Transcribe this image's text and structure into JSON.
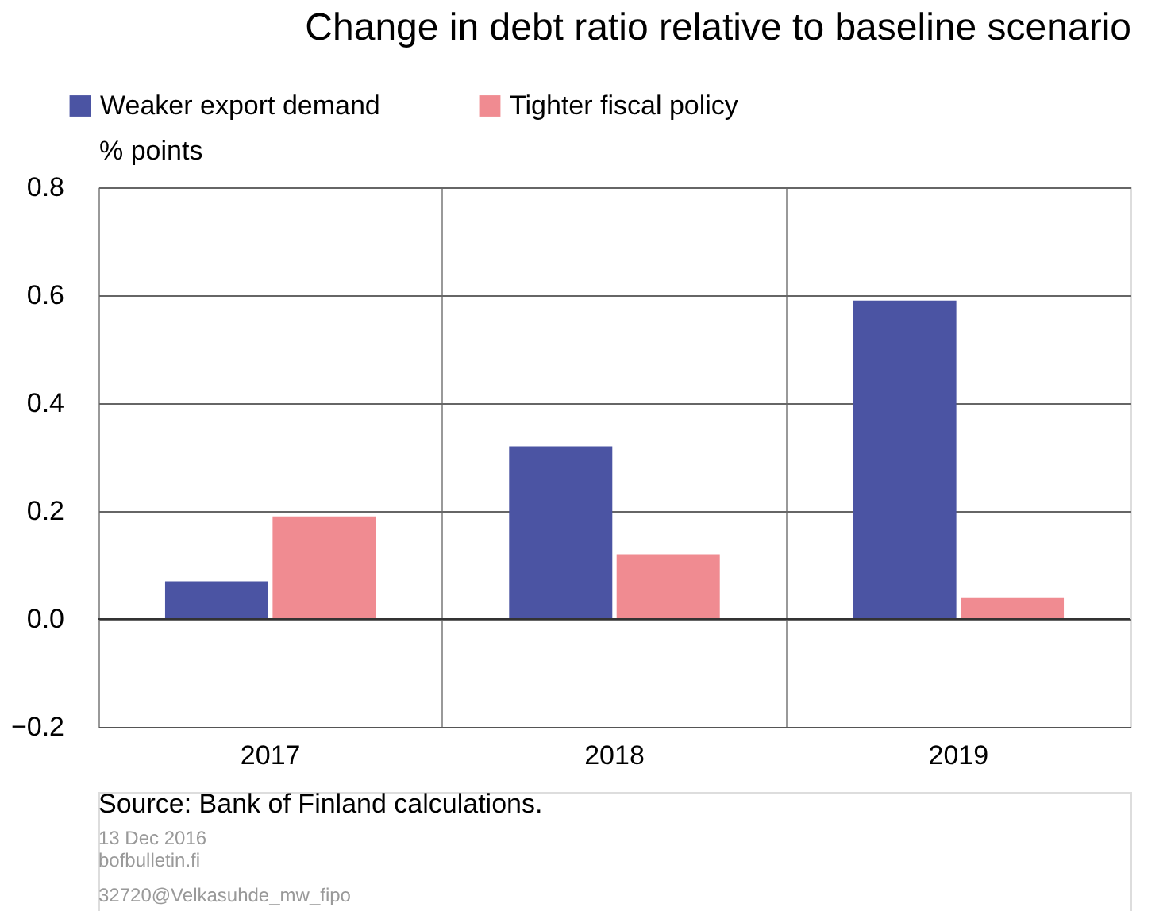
{
  "chart_data": {
    "type": "bar",
    "title": "Change in debt ratio relative to baseline scenario",
    "ylabel": "% points",
    "categories": [
      "2017",
      "2018",
      "2019"
    ],
    "series": [
      {
        "name": "Weaker export demand",
        "color": "#4b54a3",
        "values": [
          0.07,
          0.32,
          0.59
        ]
      },
      {
        "name": "Tighter fiscal policy",
        "color": "#f08b91",
        "values": [
          0.19,
          0.12,
          0.04
        ]
      }
    ],
    "ylim": [
      -0.2,
      0.8
    ],
    "yticks": [
      {
        "value": -0.2,
        "label": "−0.2"
      },
      {
        "value": 0.0,
        "label": "0.0"
      },
      {
        "value": 0.2,
        "label": "0.2"
      },
      {
        "value": 0.4,
        "label": "0.4"
      },
      {
        "value": 0.6,
        "label": "0.6"
      },
      {
        "value": 0.8,
        "label": "0.8"
      }
    ],
    "grid": true,
    "legend": "top left",
    "annotations": [
      "Source: Bank of Finland calculations.",
      "13 Dec 2016",
      "bofbulletin.fi",
      "32720@Velkasuhde_mw_fipo"
    ]
  }
}
